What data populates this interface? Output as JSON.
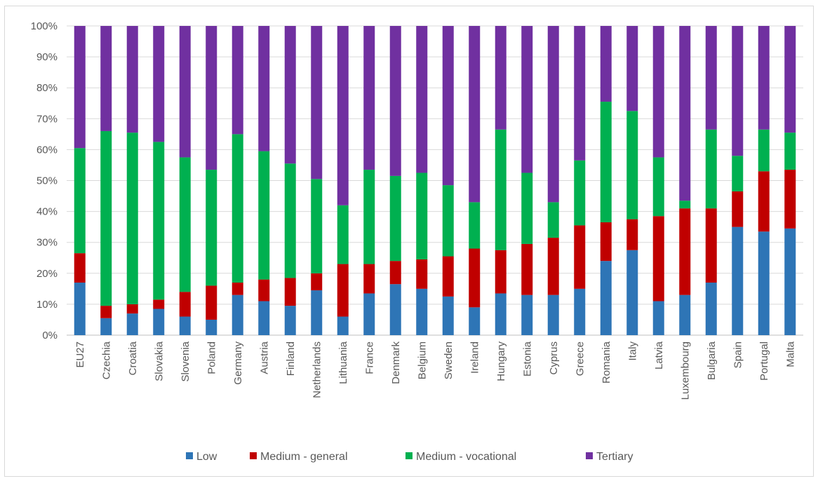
{
  "chart_data": {
    "type": "bar",
    "stacked": true,
    "percent_stacked": true,
    "grid": true,
    "legend_position": "bottom",
    "ylim": [
      0,
      100
    ],
    "yticks": [
      "0%",
      "10%",
      "20%",
      "30%",
      "40%",
      "50%",
      "60%",
      "70%",
      "80%",
      "90%",
      "100%"
    ],
    "categories": [
      "EU27",
      "Czechia",
      "Croatia",
      "Slovakia",
      "Slovenia",
      "Poland",
      "Germany",
      "Austria",
      "Finland",
      "Netherlands",
      "Lithuania",
      "France",
      "Denmark",
      "Belgium",
      "Sweden",
      "Ireland",
      "Hungary",
      "Estonia",
      "Cyprus",
      "Greece",
      "Romania",
      "Italy",
      "Latvia",
      "Luxembourg",
      "Bulgaria",
      "Spain",
      "Portugal",
      "Malta"
    ],
    "series": [
      {
        "name": "Low",
        "color": "#2E75B6",
        "values": [
          17,
          5.5,
          7,
          8.5,
          6,
          5,
          13,
          11,
          9.5,
          14.5,
          6,
          13.5,
          16.5,
          15,
          12.5,
          9,
          13.5,
          13,
          13,
          15,
          24,
          27.5,
          11,
          13,
          17,
          35,
          33.5,
          34.5
        ]
      },
      {
        "name": "Medium - general",
        "color": "#C00000",
        "values": [
          9.5,
          4,
          3,
          3,
          8,
          11,
          4,
          7,
          9,
          5.5,
          17,
          9.5,
          7.5,
          9.5,
          13,
          19,
          14,
          16.5,
          18.5,
          20.5,
          12.5,
          10,
          27.5,
          28,
          24,
          11.5,
          19.5,
          19
        ]
      },
      {
        "name": "Medium - vocational",
        "color": "#00B050",
        "values": [
          34,
          56.5,
          55.5,
          51,
          43.5,
          37.5,
          48,
          41.5,
          37,
          30.5,
          19,
          30.5,
          27.5,
          28,
          23,
          15,
          39,
          23,
          11.5,
          21,
          39,
          35,
          19,
          2.5,
          25.5,
          11.5,
          13.5,
          12
        ]
      },
      {
        "name": "Tertiary",
        "color": "#7030A0",
        "values": [
          39.5,
          34,
          34.5,
          37.5,
          42.5,
          46.5,
          35,
          40.5,
          44.5,
          49.5,
          58,
          46.5,
          48.5,
          47.5,
          51.5,
          57,
          33.5,
          47.5,
          57,
          43.5,
          24.5,
          27.5,
          42.5,
          56.5,
          33.5,
          42,
          33.5,
          34.5
        ]
      }
    ]
  }
}
